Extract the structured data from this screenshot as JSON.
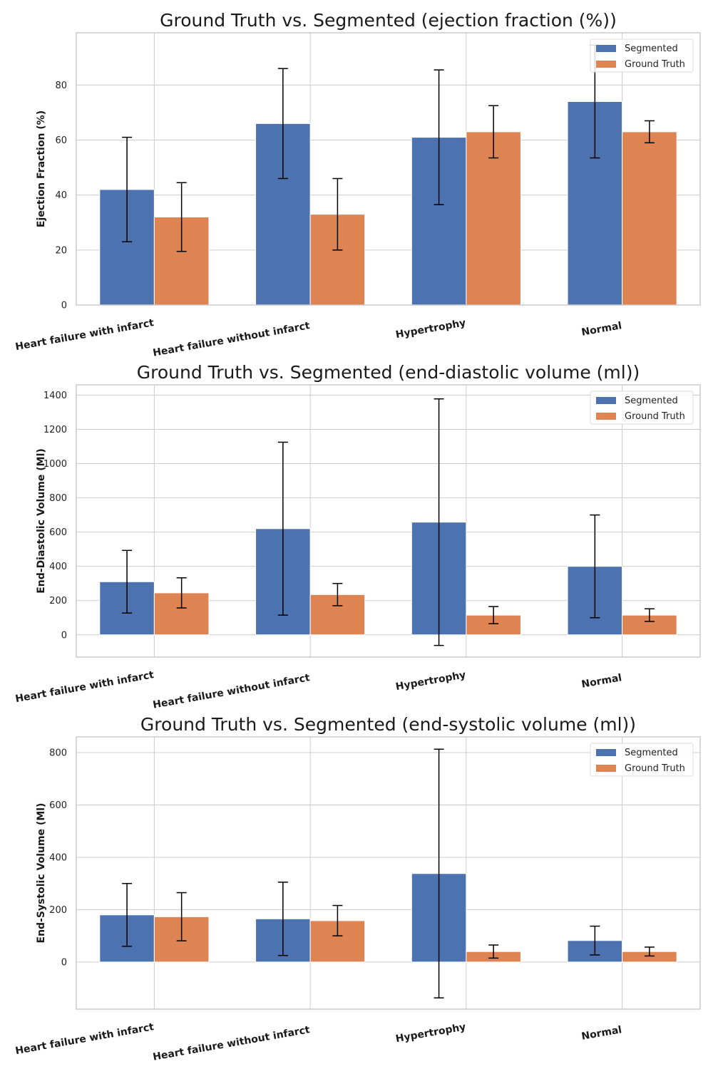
{
  "chart_data": [
    {
      "type": "bar",
      "title": "Ground Truth vs. Segmented (ejection fraction (%))",
      "ylabel": "Ejection Fraction (%)",
      "xlabel": "",
      "categories": [
        "Heart failure with infarct",
        "Heart failure without infarct",
        "Hypertrophy",
        "Normal"
      ],
      "ylim": [
        0,
        99
      ],
      "yticks": [
        0,
        20,
        40,
        60,
        80
      ],
      "series": [
        {
          "name": "Segmented",
          "color": "#4C72B0",
          "values": [
            42,
            66,
            61,
            74
          ],
          "errors": [
            19,
            20,
            24.5,
            20.5
          ]
        },
        {
          "name": "Ground Truth",
          "color": "#DD8452",
          "values": [
            32,
            33,
            63,
            63
          ],
          "errors": [
            12.5,
            13,
            9.5,
            4
          ]
        }
      ],
      "legend": "top-right",
      "grid": true
    },
    {
      "type": "bar",
      "title": "Ground Truth vs. Segmented (end-diastolic volume (ml))",
      "ylabel": "End-Diastolic Volume (Ml)",
      "xlabel": "",
      "categories": [
        "Heart failure with infarct",
        "Heart failure without infarct",
        "Hypertrophy",
        "Normal"
      ],
      "ylim": [
        -130,
        1460
      ],
      "yticks": [
        0,
        200,
        400,
        600,
        800,
        1000,
        1200,
        1400
      ],
      "series": [
        {
          "name": "Segmented",
          "color": "#4C72B0",
          "values": [
            310,
            620,
            658,
            400
          ],
          "errors": [
            183,
            505,
            720,
            300
          ]
        },
        {
          "name": "Ground Truth",
          "color": "#DD8452",
          "values": [
            245,
            235,
            115,
            115
          ],
          "errors": [
            88,
            65,
            50,
            37
          ]
        }
      ],
      "legend": "top-right",
      "grid": true
    },
    {
      "type": "bar",
      "title": "Ground Truth vs. Segmented (end-systolic volume (ml))",
      "ylabel": "End-Systolic Volume (Ml)",
      "xlabel": "",
      "categories": [
        "Heart failure with infarct",
        "Heart failure without infarct",
        "Hypertrophy",
        "Normal"
      ],
      "ylim": [
        -180,
        860
      ],
      "yticks": [
        0,
        200,
        400,
        600,
        800
      ],
      "series": [
        {
          "name": "Segmented",
          "color": "#4C72B0",
          "values": [
            180,
            165,
            338,
            82
          ],
          "errors": [
            120,
            140,
            475,
            55
          ]
        },
        {
          "name": "Ground Truth",
          "color": "#DD8452",
          "values": [
            173,
            158,
            40,
            40
          ],
          "errors": [
            92,
            58,
            25,
            17
          ]
        }
      ],
      "legend": "top-right",
      "grid": true
    }
  ]
}
